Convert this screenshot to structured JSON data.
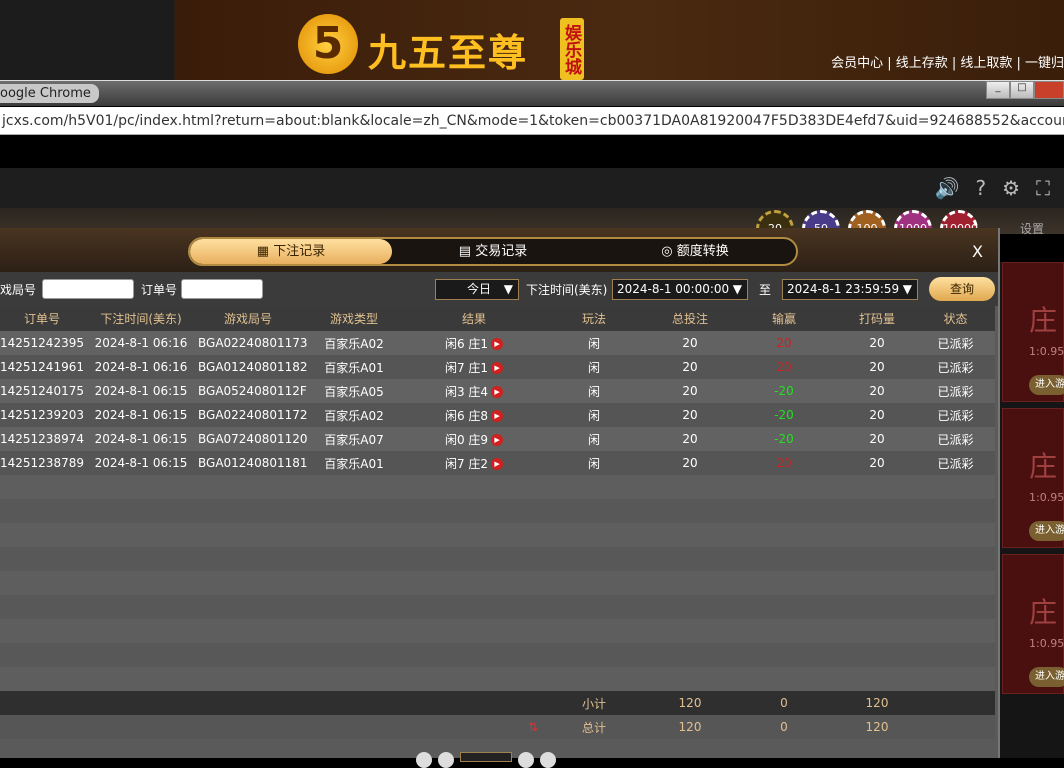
{
  "banner": {
    "logo_digit": "5",
    "logo_text": "九五至尊",
    "logo_tag": "娱乐城",
    "links": "会员中心 | 线上存款 | 线上取款 | 一键归"
  },
  "browser": {
    "title": "oogle Chrome",
    "url": "jcxs.com/h5V01/pc/index.html?return=about:blank&locale=zh_CN&mode=1&token=cb00371DA0A81920047F5D383DE4efd7&uid=924688552&account=957"
  },
  "game": {
    "chips": [
      "20",
      "50",
      "100",
      "1000",
      "10000"
    ],
    "settings": "设置"
  },
  "side": {
    "cards": [
      {
        "z": "庄",
        "odds": "1:0.95",
        "btn": "进入游"
      },
      {
        "z": "庄",
        "odds": "1:0.95",
        "btn": "进入游"
      },
      {
        "z": "庄",
        "odds": "1:0.95",
        "btn": "进入游"
      }
    ]
  },
  "modal": {
    "tabs": [
      "下注记录",
      "交易记录",
      "额度转换"
    ],
    "close": "X",
    "filter": {
      "round_label": "戏局号",
      "order_label": "订单号",
      "range": "今日",
      "time_label": "下注时间(美东)",
      "start": "2024-8-1 00:00:00",
      "to": "至",
      "end": "2024-8-1 23:59:59",
      "query": "查询"
    },
    "columns": [
      "订单号",
      "下注时间(美东)",
      "游戏局号",
      "游戏类型",
      "结果",
      "玩法",
      "总投注",
      "输赢",
      "打码量",
      "状态"
    ],
    "rows": [
      [
        "14251242395",
        "2024-8-1 06:16",
        "BGA02240801173",
        "百家乐A02",
        "闲6 庄1",
        "闲",
        "20",
        "20",
        "20",
        "已派彩"
      ],
      [
        "14251241961",
        "2024-8-1 06:16",
        "BGA01240801182",
        "百家乐A01",
        "闲7 庄1",
        "闲",
        "20",
        "20",
        "20",
        "已派彩"
      ],
      [
        "14251240175",
        "2024-8-1 06:15",
        "BGA0524080112F",
        "百家乐A05",
        "闲3 庄4",
        "闲",
        "20",
        "-20",
        "20",
        "已派彩"
      ],
      [
        "14251239203",
        "2024-8-1 06:15",
        "BGA02240801172",
        "百家乐A02",
        "闲6 庄8",
        "闲",
        "20",
        "-20",
        "20",
        "已派彩"
      ],
      [
        "14251238974",
        "2024-8-1 06:15",
        "BGA07240801120",
        "百家乐A07",
        "闲0 庄9",
        "闲",
        "20",
        "-20",
        "20",
        "已派彩"
      ],
      [
        "14251238789",
        "2024-8-1 06:15",
        "BGA01240801181",
        "百家乐A01",
        "闲7 庄2",
        "闲",
        "20",
        "20",
        "20",
        "已派彩"
      ]
    ],
    "subtotal": {
      "label": "小计",
      "bet": "120",
      "win": "0",
      "code": "120"
    },
    "total": {
      "label": "总计",
      "bet": "120",
      "win": "0",
      "code": "120"
    }
  }
}
